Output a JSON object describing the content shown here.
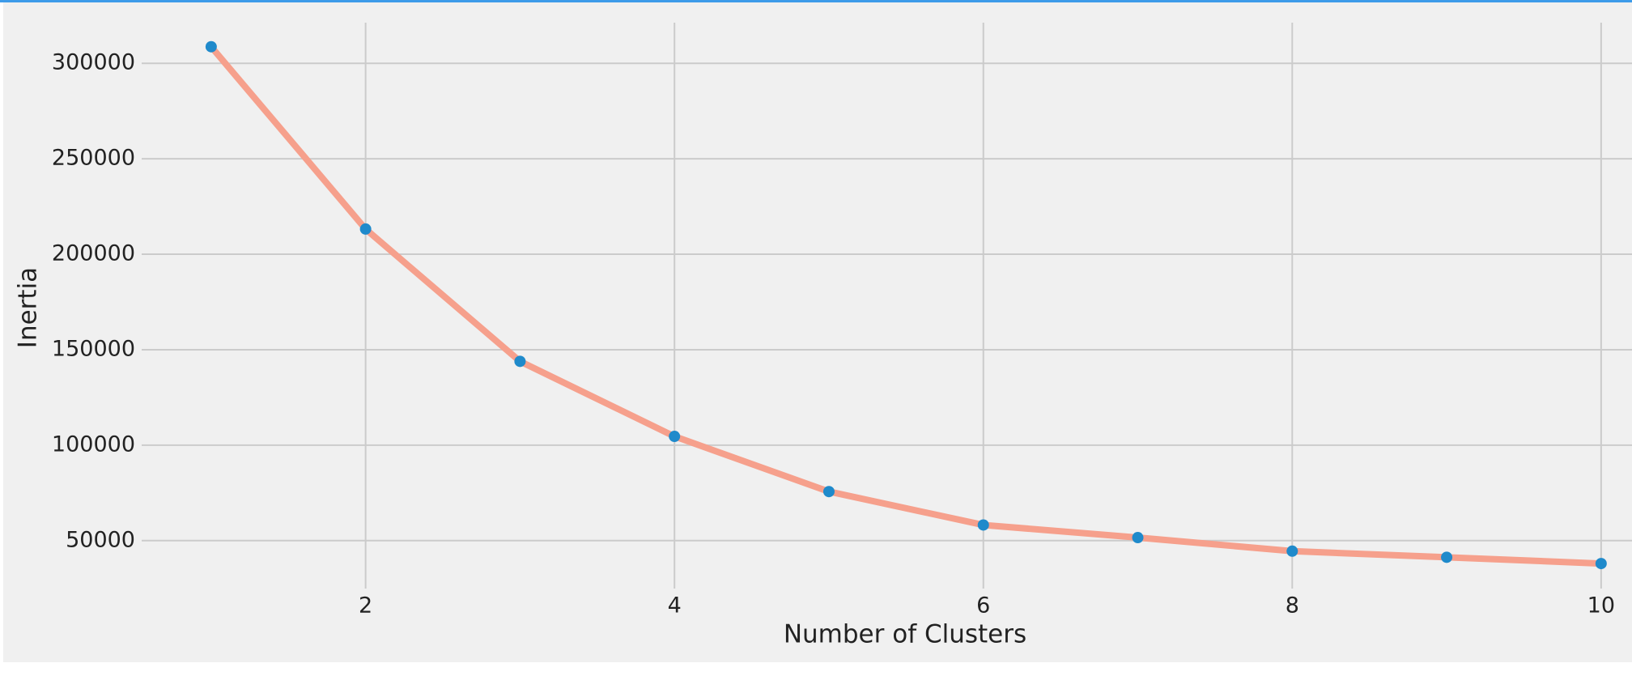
{
  "chart_data": {
    "type": "line",
    "x_label": "Number of Clusters",
    "y_label": "Inertia",
    "x": [
      1,
      2,
      3,
      4,
      5,
      6,
      7,
      8,
      9,
      10
    ],
    "series": [
      {
        "values": [
          308700,
          213200,
          143900,
          104600,
          75700,
          58200,
          51600,
          44500,
          41300,
          38000
        ],
        "color": "#f6a08c",
        "marker_color": "#1f8acb"
      }
    ],
    "xlim": [
      0.55,
      10.2
    ],
    "xticks": [
      2,
      4,
      6,
      8,
      10
    ],
    "ylim": [
      24900,
      321300
    ],
    "yticks": [
      50000,
      100000,
      150000,
      200000,
      250000,
      300000
    ],
    "grid": true
  }
}
